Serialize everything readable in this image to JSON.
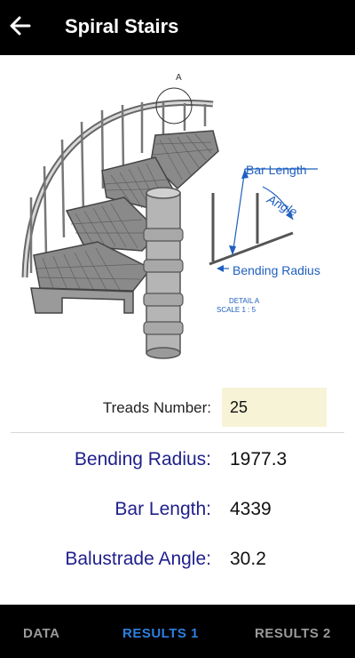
{
  "header": {
    "title": "Spiral Stairs",
    "back_icon": "arrow-left-icon"
  },
  "illustration": {
    "detail_letter": "A",
    "callouts": {
      "bar_length": "Bar Length",
      "angle": "Angle",
      "bending_radius": "Bending Radius"
    },
    "detail_title": "DETAIL A",
    "detail_scale": "SCALE 1 : 5"
  },
  "form": {
    "treads_label": "Treads Number:",
    "treads_value": "25",
    "bending_radius_label": "Bending Radius:",
    "bending_radius_value": "1977.3",
    "bar_length_label": "Bar Length:",
    "bar_length_value": "4339",
    "balustrade_angle_label": "Balustrade Angle:",
    "balustrade_angle_value": "30.2"
  },
  "tabs": [
    {
      "label": "DATA",
      "active": false
    },
    {
      "label": "RESULTS 1",
      "active": true
    },
    {
      "label": "RESULTS 2",
      "active": false
    }
  ],
  "colors": {
    "accent": "#2d7fe0",
    "result_label": "#1f1f8c",
    "input_bg": "#f7f3d6",
    "bar": "#000000"
  }
}
